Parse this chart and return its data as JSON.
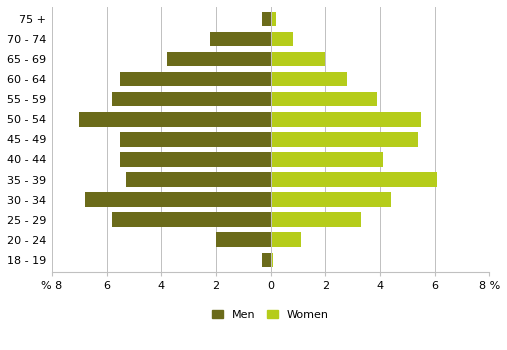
{
  "age_groups": [
    "18 - 19",
    "20 - 24",
    "25 - 29",
    "30 - 34",
    "35 - 39",
    "40 - 44",
    "45 - 49",
    "50 - 54",
    "55 - 59",
    "60 - 64",
    "65 - 69",
    "70 - 74",
    "75 +"
  ],
  "men_values": [
    0.3,
    2.0,
    5.8,
    6.8,
    5.3,
    5.5,
    5.5,
    7.0,
    5.8,
    5.5,
    3.8,
    2.2,
    0.3
  ],
  "women_values": [
    0.1,
    1.1,
    3.3,
    4.4,
    6.1,
    4.1,
    5.4,
    5.5,
    3.9,
    2.8,
    2.0,
    0.8,
    0.2
  ],
  "men_color": "#6b6b1a",
  "women_color": "#b5cc1a",
  "xlim": 8,
  "legend_men": "Men",
  "legend_women": "Women",
  "bg_color": "#ffffff",
  "grid_color": "#c0c0c0",
  "tick_labels": [
    "% 8",
    "6",
    "4",
    "2",
    "0",
    "2",
    "4",
    "6",
    "8 %"
  ]
}
